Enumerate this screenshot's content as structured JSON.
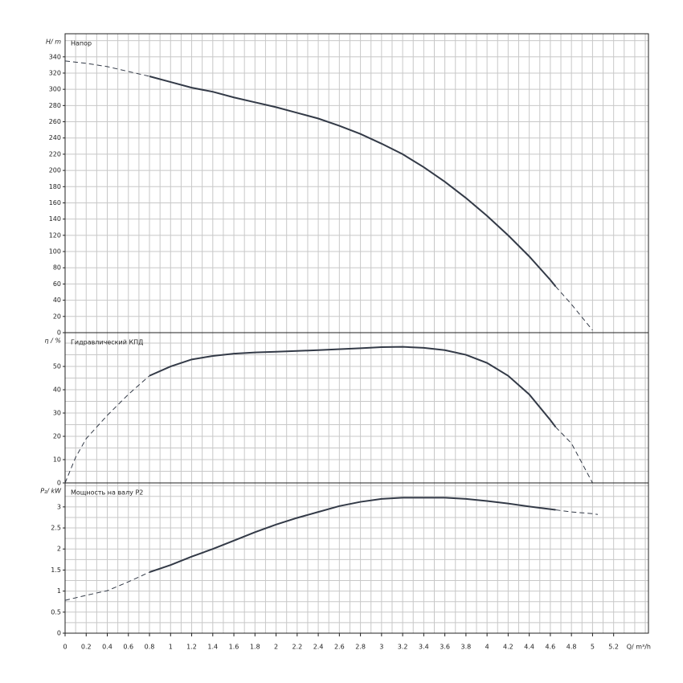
{
  "chart_data": [
    {
      "type": "line",
      "title": "Напор",
      "ylabel": "H/ m",
      "xlim": [
        0,
        5.53
      ],
      "ylim": [
        0,
        368.5
      ],
      "yticks": [
        0,
        20,
        40,
        60,
        80,
        100,
        120,
        140,
        160,
        180,
        200,
        220,
        240,
        260,
        280,
        300,
        320,
        340
      ],
      "xgrid_step": 0.1,
      "ygrid_step": 20,
      "grid": true,
      "series": [
        {
          "color": "#333a47",
          "dashed": true,
          "x": [
            0,
            0.2,
            0.4,
            0.6,
            0.8
          ],
          "values": [
            335,
            332,
            328,
            322,
            316
          ]
        },
        {
          "color": "#333a47",
          "dashed": false,
          "x": [
            0.8,
            1.0,
            1.2,
            1.4,
            1.6,
            1.8,
            2.0,
            2.2,
            2.4,
            2.6,
            2.8,
            3.0,
            3.2,
            3.4,
            3.6,
            3.8,
            4.0,
            4.2,
            4.4,
            4.6,
            4.65
          ],
          "values": [
            316,
            309,
            302,
            297,
            290,
            284,
            278,
            271,
            264,
            255,
            245,
            233,
            220,
            204,
            186,
            166,
            144,
            120,
            94,
            65,
            57
          ]
        },
        {
          "color": "#333a47",
          "dashed": true,
          "x": [
            4.65,
            4.8,
            5.0
          ],
          "values": [
            57,
            35,
            3
          ]
        }
      ]
    },
    {
      "type": "line",
      "title": "Гидравлический КПД",
      "ylabel": "η / %",
      "xlim": [
        0,
        5.53
      ],
      "ylim": [
        0,
        64.5
      ],
      "yticks": [
        0,
        10,
        20,
        30,
        40,
        50
      ],
      "xgrid_step": 0.1,
      "ygrid_step": 5,
      "grid": true,
      "series": [
        {
          "color": "#333a47",
          "dashed": true,
          "x": [
            0,
            0.1,
            0.2,
            0.4,
            0.6,
            0.8
          ],
          "values": [
            0,
            11,
            19,
            29,
            38,
            46
          ]
        },
        {
          "color": "#333a47",
          "dashed": false,
          "x": [
            0.8,
            1.0,
            1.2,
            1.4,
            1.6,
            1.8,
            2.0,
            2.4,
            2.8,
            3.0,
            3.2,
            3.4,
            3.6,
            3.8,
            4.0,
            4.2,
            4.4,
            4.6,
            4.65
          ],
          "values": [
            46,
            50,
            53,
            54.5,
            55.5,
            56,
            56.3,
            57,
            57.8,
            58.3,
            58.4,
            58,
            57,
            55,
            51.5,
            46,
            38,
            27,
            24
          ]
        },
        {
          "color": "#333a47",
          "dashed": true,
          "x": [
            4.65,
            4.8,
            5.0
          ],
          "values": [
            24,
            17,
            0
          ]
        }
      ]
    },
    {
      "type": "line",
      "title": "Мощность на валу P2",
      "ylabel": "P₂/ kW",
      "xlabel": "Q/ m³/h",
      "xlim": [
        0,
        5.53
      ],
      "ylim": [
        0,
        3.57
      ],
      "xticks": [
        0,
        0.2,
        0.4,
        0.6,
        0.8,
        1,
        1.2,
        1.4,
        1.6,
        1.8,
        2,
        2.2,
        2.4,
        2.6,
        2.8,
        3,
        3.2,
        3.4,
        3.6,
        3.8,
        4,
        4.2,
        4.4,
        4.6,
        4.8,
        5,
        5.2
      ],
      "yticks": [
        0,
        0.5,
        1,
        1.5,
        2,
        2.5,
        3
      ],
      "xgrid_step": 0.1,
      "ygrid_step": 0.25,
      "grid": true,
      "series": [
        {
          "color": "#333a47",
          "dashed": true,
          "x": [
            0,
            0.2,
            0.4,
            0.6,
            0.8
          ],
          "values": [
            0.78,
            0.9,
            1.01,
            1.22,
            1.45
          ]
        },
        {
          "color": "#333a47",
          "dashed": false,
          "x": [
            0.8,
            1.0,
            1.2,
            1.4,
            1.6,
            1.8,
            2.0,
            2.2,
            2.4,
            2.6,
            2.8,
            3.0,
            3.2,
            3.4,
            3.6,
            3.8,
            4.0,
            4.2,
            4.4,
            4.65
          ],
          "values": [
            1.45,
            1.62,
            1.82,
            2.0,
            2.2,
            2.4,
            2.58,
            2.74,
            2.88,
            3.02,
            3.12,
            3.19,
            3.22,
            3.22,
            3.22,
            3.19,
            3.14,
            3.08,
            3.01,
            2.93
          ]
        },
        {
          "color": "#333a47",
          "dashed": true,
          "x": [
            4.65,
            4.8,
            5.0,
            5.05
          ],
          "values": [
            2.93,
            2.88,
            2.84,
            2.82
          ]
        }
      ]
    }
  ]
}
